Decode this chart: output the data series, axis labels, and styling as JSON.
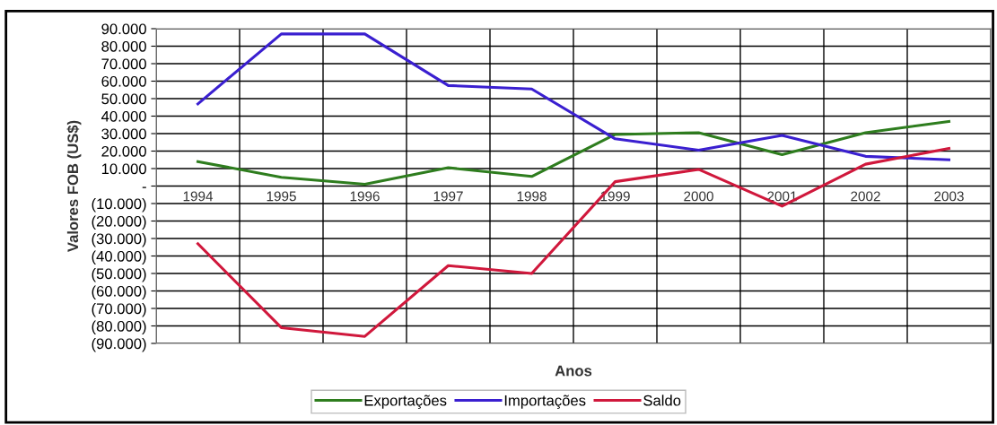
{
  "chart_data": {
    "type": "line",
    "xlabel": "Anos",
    "ylabel": "Valores FOB (US$)",
    "categories": [
      "1994",
      "1995",
      "1996",
      "1997",
      "1998",
      "1999",
      "2000",
      "2001",
      "2002",
      "2003"
    ],
    "series": [
      {
        "name": "Exportações",
        "color": "#2e7d1e",
        "values": [
          14000,
          5000,
          1000,
          10500,
          5500,
          29500,
          30500,
          18000,
          30500,
          37000
        ]
      },
      {
        "name": "Importações",
        "color": "#3a1fd0",
        "values": [
          47000,
          87000,
          87000,
          57500,
          55500,
          27000,
          20500,
          29000,
          17000,
          15000
        ]
      },
      {
        "name": "Saldo",
        "color": "#d0183c",
        "values": [
          -33000,
          -81000,
          -86000,
          -45500,
          -50000,
          2500,
          9500,
          -11500,
          12500,
          21500
        ]
      }
    ],
    "ylim": [
      -90000,
      90000
    ],
    "yticks": [
      {
        "value": 90000,
        "label": "90.000"
      },
      {
        "value": 80000,
        "label": "80.000"
      },
      {
        "value": 70000,
        "label": "70.000"
      },
      {
        "value": 60000,
        "label": "60.000"
      },
      {
        "value": 50000,
        "label": "50.000"
      },
      {
        "value": 40000,
        "label": "40.000"
      },
      {
        "value": 30000,
        "label": "30.000"
      },
      {
        "value": 20000,
        "label": "20.000"
      },
      {
        "value": 10000,
        "label": "10.000"
      },
      {
        "value": 0,
        "label": "-"
      },
      {
        "value": -10000,
        "label": "(10.000)"
      },
      {
        "value": -20000,
        "label": "(20.000)"
      },
      {
        "value": -30000,
        "label": "(30.000)"
      },
      {
        "value": -40000,
        "label": "(40.000)"
      },
      {
        "value": -50000,
        "label": "(50.000)"
      },
      {
        "value": -60000,
        "label": "(60.000)"
      },
      {
        "value": -70000,
        "label": "(70.000)"
      },
      {
        "value": -80000,
        "label": "(80.000)"
      },
      {
        "value": -90000,
        "label": "(90.000)"
      }
    ],
    "grid": true,
    "legend": "bottom",
    "marker": "none",
    "line_style": "solid"
  }
}
